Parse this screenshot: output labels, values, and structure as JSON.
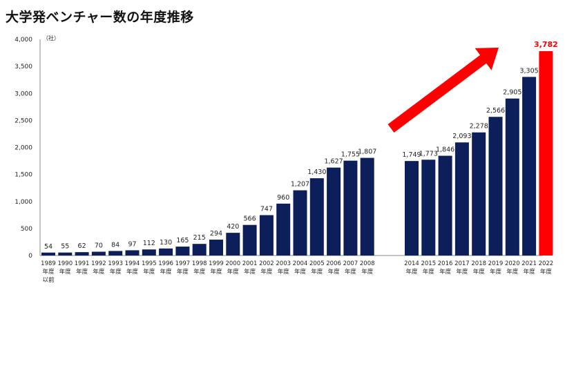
{
  "title": "大学発ベンチャー数の年度推移",
  "chart_data": {
    "type": "bar",
    "unit": "（社）",
    "ylim": [
      0,
      4000
    ],
    "yticks": [
      "0",
      "500",
      "1,000",
      "1,500",
      "2,000",
      "2,500",
      "3,000",
      "3,500",
      "4,000"
    ],
    "grid": false,
    "categories": [
      [
        "1989",
        "年度",
        "以前"
      ],
      [
        "1990",
        "年度"
      ],
      [
        "1991",
        "年度"
      ],
      [
        "1992",
        "年度"
      ],
      [
        "1993",
        "年度"
      ],
      [
        "1994",
        "年度"
      ],
      [
        "1995",
        "年度"
      ],
      [
        "1996",
        "年度"
      ],
      [
        "1997",
        "年度"
      ],
      [
        "1998",
        "年度"
      ],
      [
        "1999",
        "年度"
      ],
      [
        "2000",
        "年度"
      ],
      [
        "2001",
        "年度"
      ],
      [
        "2002",
        "年度"
      ],
      [
        "2003",
        "年度"
      ],
      [
        "2004",
        "年度"
      ],
      [
        "2005",
        "年度"
      ],
      [
        "2006",
        "年度"
      ],
      [
        "2007",
        "年度"
      ],
      [
        "2008",
        "年度"
      ],
      [
        "2014",
        "年度"
      ],
      [
        "2015",
        "年度"
      ],
      [
        "2016",
        "年度"
      ],
      [
        "2017",
        "年度"
      ],
      [
        "2018",
        "年度"
      ],
      [
        "2019",
        "年度"
      ],
      [
        "2020",
        "年度"
      ],
      [
        "2021",
        "年度"
      ],
      [
        "2022",
        "年度"
      ]
    ],
    "values": [
      54,
      55,
      62,
      70,
      84,
      97,
      112,
      130,
      165,
      215,
      294,
      420,
      566,
      747,
      960,
      1207,
      1430,
      1627,
      1755,
      1807,
      1749,
      1773,
      1846,
      2093,
      2278,
      2566,
      2905,
      3305,
      3782
    ],
    "value_labels": [
      "54",
      "55",
      "62",
      "70",
      "84",
      "97",
      "112",
      "130",
      "165",
      "215",
      "294",
      "420",
      "566",
      "747",
      "960",
      "1,207",
      "1,430",
      "1,627",
      "1,755",
      "1,807",
      "1,749",
      "1,773",
      "1,846",
      "2,093",
      "2,278",
      "2,566",
      "2,905",
      "3,305",
      "3,782"
    ],
    "bar_color": "#0c1f5b",
    "highlight_index": 28,
    "highlight_color": "#ff0000",
    "annotation": "red upward arrow"
  }
}
